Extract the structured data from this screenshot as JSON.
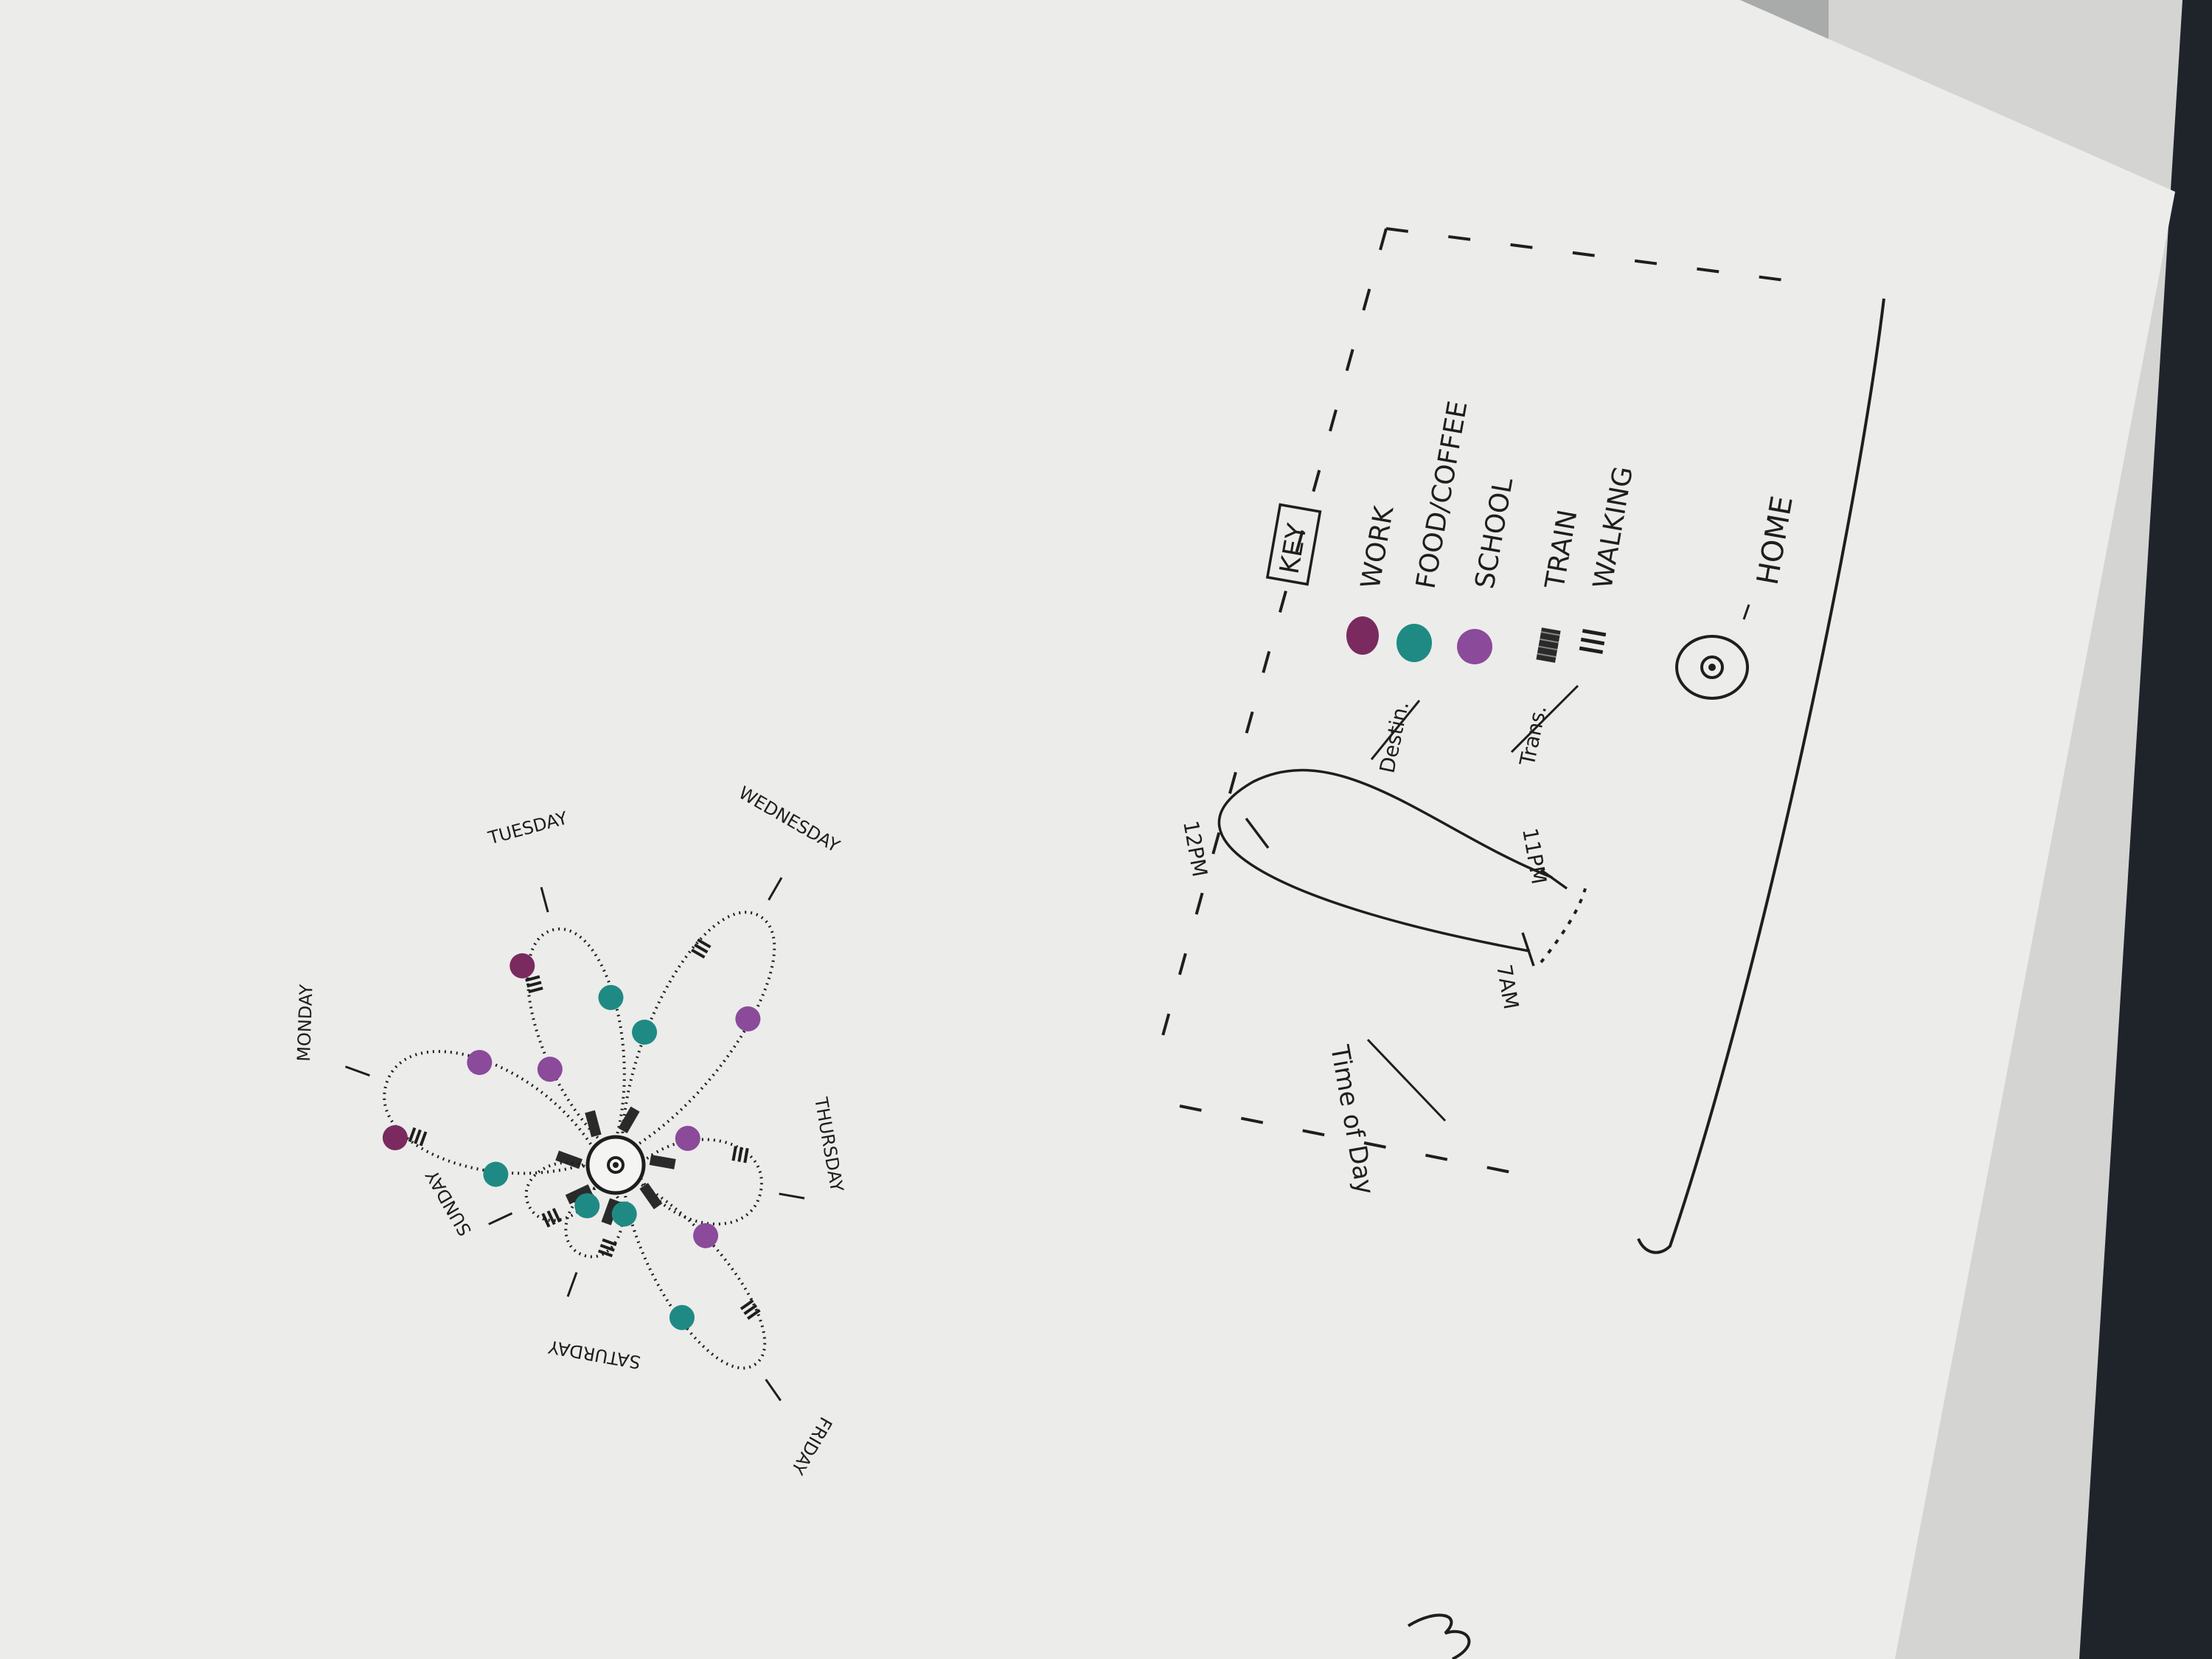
{
  "diagram": {
    "days": [
      {
        "name": "Monday",
        "label": "MONDAY"
      },
      {
        "name": "Tuesday",
        "label": "TUESDAY"
      },
      {
        "name": "Wednesday",
        "label": "WEDNESDAY"
      },
      {
        "name": "Thursday",
        "label": "THURSDAY"
      },
      {
        "name": "Friday",
        "label": "FRIDAY"
      },
      {
        "name": "Saturday",
        "label": "SATURDAY"
      },
      {
        "name": "Sunday",
        "label": "SUNDAY"
      }
    ],
    "time_of_day": {
      "heading": "Time of Day",
      "labels": {
        "start": "7AM",
        "noon": "12PM",
        "end": "11PM"
      }
    },
    "key": {
      "title": "KEY",
      "destination_heading": "Destin.",
      "transport_heading": "Trans.",
      "destinations": [
        {
          "label": "WORK",
          "color": "#7a2a5e"
        },
        {
          "label": "FOOD/COFFEE",
          "color": "#1f8a84"
        },
        {
          "label": "SCHOOL",
          "color": "#8b4a9a"
        }
      ],
      "transport": [
        {
          "label": "TRAIN",
          "icon": "train-bar-icon"
        },
        {
          "label": "WALKING",
          "icon": "walking-ticks-icon"
        }
      ],
      "home": {
        "label": "HOME",
        "icon": "home-circle-icon"
      }
    },
    "colors": {
      "work": "#7a2a5e",
      "food_coffee": "#1f8a84",
      "school": "#8b4a9a",
      "ink": "#1e1e1e",
      "paper": "#ededec"
    }
  }
}
